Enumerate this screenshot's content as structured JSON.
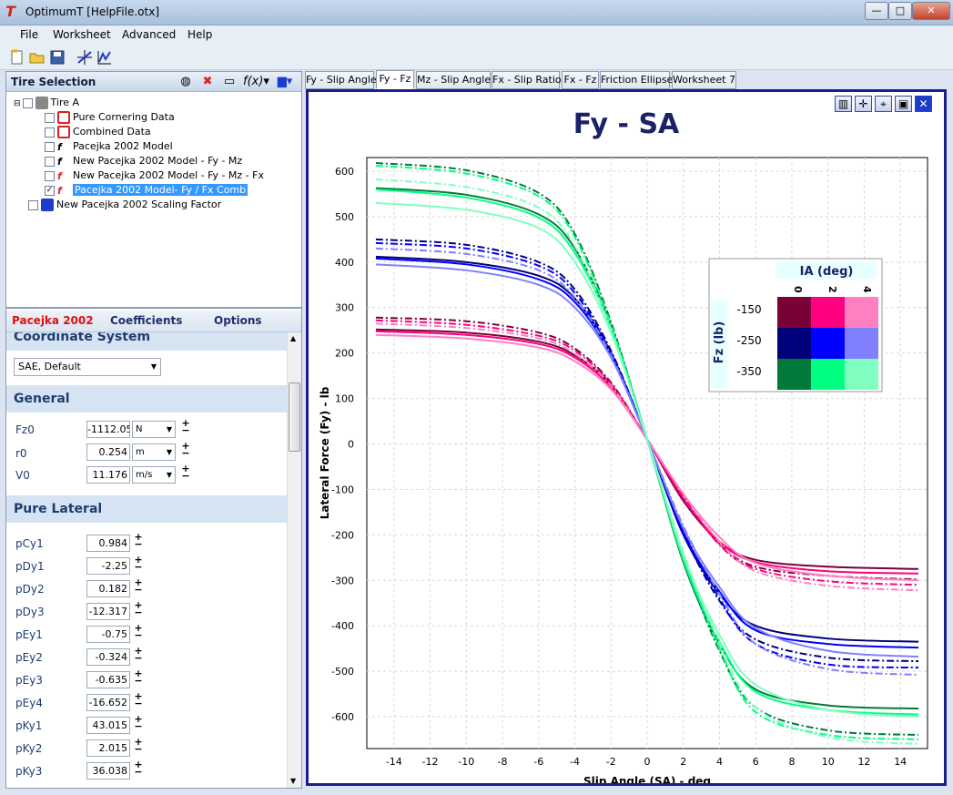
{
  "window": {
    "title": "OptimumT [HelpFile.otx]",
    "buttons": {
      "minimize": "—",
      "maximize": "□",
      "close": "✕"
    }
  },
  "menu": [
    "File",
    "Worksheet",
    "Advanced",
    "Help"
  ],
  "tire_selection": {
    "title": "Tire Selection",
    "tree": [
      {
        "label": "Tire A",
        "checked": false
      },
      {
        "label": "Pure Cornering Data",
        "checked": false
      },
      {
        "label": "Combined Data",
        "checked": false
      },
      {
        "label": "Pacejka 2002 Model",
        "checked": false
      },
      {
        "label": "New Pacejka 2002 Model - Fy - Mz",
        "checked": false
      },
      {
        "label": "New Pacejka 2002 Model - Fy - Mz - Fx",
        "checked": false
      },
      {
        "label": "Pacejka 2002 Model- Fy / Fx Comb",
        "checked": true
      },
      {
        "label": "New Pacejka 2002 Scaling Factor",
        "checked": false
      }
    ]
  },
  "model_tabs": [
    "Pacejka 2002",
    "Coefficients",
    "Options"
  ],
  "coordinate_system": {
    "heading": "Coordinate System",
    "value": "SAE, Default"
  },
  "general": {
    "heading": "General",
    "params": [
      {
        "name": "Fz0",
        "value": "-1112.05",
        "unit": "N"
      },
      {
        "name": "r0",
        "value": "0.254",
        "unit": "m"
      },
      {
        "name": "V0",
        "value": "11.176",
        "unit": "m/s"
      }
    ]
  },
  "pure_lateral": {
    "heading": "Pure Lateral",
    "params": [
      {
        "name": "pCy1",
        "value": "0.984"
      },
      {
        "name": "pDy1",
        "value": "-2.25"
      },
      {
        "name": "pDy2",
        "value": "0.182"
      },
      {
        "name": "pDy3",
        "value": "-12.317"
      },
      {
        "name": "pEy1",
        "value": "-0.75"
      },
      {
        "name": "pEy2",
        "value": "-0.324"
      },
      {
        "name": "pEy3",
        "value": "-0.635"
      },
      {
        "name": "pEy4",
        "value": "-16.652"
      },
      {
        "name": "pKy1",
        "value": "43.015"
      },
      {
        "name": "pKy2",
        "value": "2.015"
      },
      {
        "name": "pKy3",
        "value": "36.038"
      }
    ]
  },
  "worksheet_tabs": [
    "Fy - Slip Angle",
    "Fy - Fz",
    "Mz - Slip Angle",
    "Fx - Slip Ratio",
    "Fx - Fz",
    "Friction Ellipse",
    "Worksheet 7"
  ],
  "active_tab": "Fy - Fz",
  "chart_data": {
    "type": "line",
    "title": "Fy - SA",
    "xlabel": "Slip Angle (SA) - deg",
    "ylabel": "Lateral Force (Fy) - lb",
    "xlim": [
      -15.5,
      15.5
    ],
    "ylim": [
      -670,
      630
    ],
    "xticks": [
      -14,
      -12,
      -10,
      -8,
      -6,
      -4,
      -2,
      0,
      2,
      4,
      6,
      8,
      10,
      12,
      14
    ],
    "yticks": [
      600,
      500,
      400,
      300,
      200,
      100,
      0,
      -100,
      -200,
      -300,
      -400,
      -500,
      -600
    ],
    "grid": true,
    "legend": {
      "title": "IA (deg)",
      "col_labels": [
        "0",
        "2",
        "4"
      ],
      "row_title": "Fz (lb)",
      "row_labels": [
        "-150",
        "-250",
        "-350"
      ],
      "placement": "top-right",
      "colors": [
        [
          "#7a0038",
          "#ff0080",
          "#ff80c0"
        ],
        [
          "#00007a",
          "#0000ff",
          "#8080ff"
        ],
        [
          "#007a3a",
          "#00ff80",
          "#80ffc0"
        ]
      ]
    },
    "series": [
      {
        "fz": -150,
        "ia": 0,
        "style": "solid",
        "color": "#7a0038",
        "x": [
          -15,
          -10,
          -6,
          -4,
          -2,
          0,
          2,
          4,
          6,
          10,
          15
        ],
        "y": [
          252,
          245,
          225,
          195,
          130,
          10,
          -125,
          -215,
          -255,
          -270,
          -275
        ]
      },
      {
        "fz": -150,
        "ia": 0,
        "style": "dashdot",
        "color": "#7a0038",
        "x": [
          -15,
          -10,
          -6,
          -4,
          -2,
          0,
          2,
          4,
          6,
          10,
          15
        ],
        "y": [
          278,
          270,
          245,
          210,
          135,
          10,
          -120,
          -220,
          -270,
          -290,
          -298
        ]
      },
      {
        "fz": -150,
        "ia": 2,
        "style": "solid",
        "color": "#ff0080",
        "x": [
          -15,
          -10,
          -6,
          -4,
          -2,
          0,
          2,
          4,
          6,
          10,
          15
        ],
        "y": [
          248,
          240,
          220,
          190,
          125,
          10,
          -120,
          -215,
          -260,
          -280,
          -285
        ]
      },
      {
        "fz": -150,
        "ia": 2,
        "style": "dashdot",
        "color": "#ff0080",
        "x": [
          -15,
          -10,
          -6,
          -4,
          -2,
          0,
          2,
          4,
          6,
          10,
          15
        ],
        "y": [
          272,
          262,
          238,
          205,
          132,
          10,
          -115,
          -222,
          -275,
          -302,
          -310
        ]
      },
      {
        "fz": -150,
        "ia": 4,
        "style": "solid",
        "color": "#ff80c0",
        "x": [
          -15,
          -10,
          -6,
          -4,
          -2,
          0,
          2,
          4,
          6,
          10,
          15
        ],
        "y": [
          240,
          232,
          212,
          182,
          120,
          10,
          -110,
          -205,
          -262,
          -290,
          -300
        ]
      },
      {
        "fz": -150,
        "ia": 4,
        "style": "dashdot",
        "color": "#ff80c0",
        "x": [
          -15,
          -10,
          -6,
          -4,
          -2,
          0,
          2,
          4,
          6,
          10,
          15
        ],
        "y": [
          265,
          255,
          232,
          198,
          128,
          10,
          -110,
          -215,
          -280,
          -312,
          -322
        ]
      },
      {
        "fz": -250,
        "ia": 0,
        "style": "solid",
        "color": "#00007a",
        "x": [
          -15,
          -10,
          -6,
          -4,
          -2,
          0,
          2,
          4,
          6,
          10,
          15
        ],
        "y": [
          412,
          400,
          370,
          320,
          200,
          10,
          -200,
          -330,
          -400,
          -428,
          -435
        ]
      },
      {
        "fz": -250,
        "ia": 0,
        "style": "dashdot",
        "color": "#00007a",
        "x": [
          -15,
          -10,
          -6,
          -4,
          -2,
          0,
          2,
          4,
          6,
          10,
          15
        ],
        "y": [
          450,
          438,
          400,
          340,
          205,
          10,
          -195,
          -345,
          -430,
          -470,
          -478
        ]
      },
      {
        "fz": -250,
        "ia": 2,
        "style": "solid",
        "color": "#0000ff",
        "x": [
          -15,
          -10,
          -6,
          -4,
          -2,
          0,
          2,
          4,
          6,
          10,
          15
        ],
        "y": [
          408,
          395,
          362,
          312,
          195,
          10,
          -195,
          -325,
          -410,
          -440,
          -448
        ]
      },
      {
        "fz": -250,
        "ia": 2,
        "style": "dashdot",
        "color": "#0000ff",
        "x": [
          -15,
          -10,
          -6,
          -4,
          -2,
          0,
          2,
          4,
          6,
          10,
          15
        ],
        "y": [
          442,
          430,
          392,
          332,
          200,
          10,
          -190,
          -340,
          -440,
          -485,
          -492
        ]
      },
      {
        "fz": -250,
        "ia": 4,
        "style": "solid",
        "color": "#8080ff",
        "x": [
          -15,
          -10,
          -6,
          -4,
          -2,
          0,
          2,
          4,
          6,
          10,
          15
        ],
        "y": [
          395,
          382,
          350,
          300,
          190,
          10,
          -185,
          -315,
          -405,
          -455,
          -468
        ]
      },
      {
        "fz": -250,
        "ia": 4,
        "style": "dashdot",
        "color": "#8080ff",
        "x": [
          -15,
          -10,
          -6,
          -4,
          -2,
          0,
          2,
          4,
          6,
          10,
          15
        ],
        "y": [
          430,
          418,
          382,
          322,
          195,
          10,
          -180,
          -330,
          -440,
          -495,
          -508
        ]
      },
      {
        "fz": -350,
        "ia": 0,
        "style": "solid",
        "color": "#007a3a",
        "x": [
          -15,
          -10,
          -6,
          -4,
          -2,
          0,
          2,
          4,
          6,
          10,
          15
        ],
        "y": [
          563,
          548,
          505,
          430,
          260,
          10,
          -260,
          -440,
          -540,
          -575,
          -582
        ]
      },
      {
        "fz": -350,
        "ia": 0,
        "style": "dashdot",
        "color": "#007a3a",
        "x": [
          -15,
          -10,
          -6,
          -4,
          -2,
          0,
          2,
          4,
          6,
          10,
          15
        ],
        "y": [
          618,
          602,
          552,
          462,
          268,
          10,
          -250,
          -455,
          -580,
          -630,
          -640
        ]
      },
      {
        "fz": -350,
        "ia": 2,
        "style": "solid",
        "color": "#00ff80",
        "x": [
          -15,
          -10,
          -6,
          -4,
          -2,
          0,
          2,
          4,
          6,
          10,
          15
        ],
        "y": [
          560,
          542,
          498,
          420,
          255,
          10,
          -255,
          -435,
          -545,
          -585,
          -595
        ]
      },
      {
        "fz": -350,
        "ia": 2,
        "style": "dashdot",
        "color": "#00ff80",
        "x": [
          -15,
          -10,
          -6,
          -4,
          -2,
          0,
          2,
          4,
          6,
          10,
          15
        ],
        "y": [
          612,
          595,
          545,
          455,
          262,
          10,
          -245,
          -450,
          -590,
          -640,
          -650
        ]
      },
      {
        "fz": -350,
        "ia": 4,
        "style": "solid",
        "color": "#80ffc0",
        "x": [
          -15,
          -10,
          -6,
          -4,
          -2,
          0,
          2,
          4,
          6,
          10,
          15
        ],
        "y": [
          530,
          515,
          475,
          400,
          245,
          10,
          -245,
          -420,
          -530,
          -585,
          -600
        ]
      },
      {
        "fz": -350,
        "ia": 4,
        "style": "dashdot",
        "color": "#80ffc0",
        "x": [
          -15,
          -10,
          -6,
          -4,
          -2,
          0,
          2,
          4,
          6,
          10,
          15
        ],
        "y": [
          582,
          565,
          520,
          435,
          252,
          10,
          -238,
          -438,
          -580,
          -645,
          -660
        ]
      }
    ]
  }
}
